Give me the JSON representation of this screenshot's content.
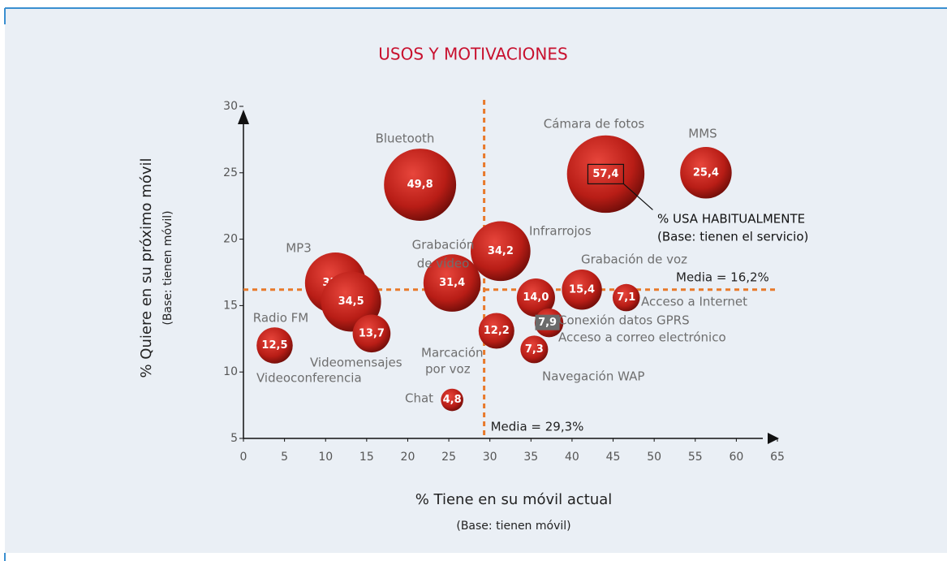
{
  "chart_data": {
    "type": "bubble",
    "title": "USOS Y MOTIVACIONES",
    "xlabel": "% Tiene en su móvil actual",
    "xlabel_sub": "(Base: tienen móvil)",
    "ylabel": "% Quiere en su próximo móvil",
    "ylabel_sub": "(Base: tienen móvil)",
    "legend": [
      "% USA HABITUALMENTE",
      "(Base: tienen el servicio)"
    ],
    "color": "#c0221b",
    "xlim": [
      0,
      65
    ],
    "xticks": [
      0,
      5,
      10,
      15,
      20,
      25,
      30,
      35,
      40,
      45,
      50,
      55,
      60,
      65
    ],
    "ylim": [
      5,
      30
    ],
    "yticks": [
      5,
      10,
      15,
      20,
      25,
      30
    ],
    "mean_x": {
      "value": 29.3,
      "label": "Media = 29,3%"
    },
    "mean_y": {
      "value": 16.2,
      "label": "Media = 16,2%"
    },
    "x": [
      3.8,
      11.2,
      13.1,
      15.6,
      21.5,
      25.4,
      25.4,
      31.3,
      30.8,
      35.6,
      37.2,
      35.4,
      41.2,
      46.6,
      44.1,
      56.3
    ],
    "values": [
      12.0,
      16.7,
      15.3,
      12.9,
      24.1,
      16.7,
      7.9,
      19.1,
      13.1,
      15.6,
      13.7,
      11.7,
      16.2,
      15.6,
      24.9,
      25.0
    ],
    "sizes": [
      12.5,
      35.5,
      34.5,
      13.7,
      49.8,
      31.4,
      4.8,
      34.2,
      12.2,
      14.0,
      7.9,
      7.3,
      15.4,
      7.1,
      57.4,
      25.4
    ],
    "size_labels": [
      "12,5",
      "35,5",
      "34,5",
      "13,7",
      "49,8",
      "31,4",
      "4,8",
      "34,2",
      "12,2",
      "14,0",
      "7,9",
      "7,3",
      "15,4",
      "7,1",
      "57,4",
      "25,4"
    ],
    "annotations": [
      "Bluetooth",
      "Cámara de fotos",
      "MMS",
      "MP3",
      "Grabación",
      "de vídeo",
      "Infrarrojos",
      "Grabación de voz",
      "Radio FM",
      "Videoconferencia",
      "Videomensajes",
      "Marcación",
      "por voz",
      "Chat",
      "Conexión datos GPRS",
      "Acceso a correo electrónico",
      "Acceso a Internet",
      "Navegación WAP"
    ]
  }
}
